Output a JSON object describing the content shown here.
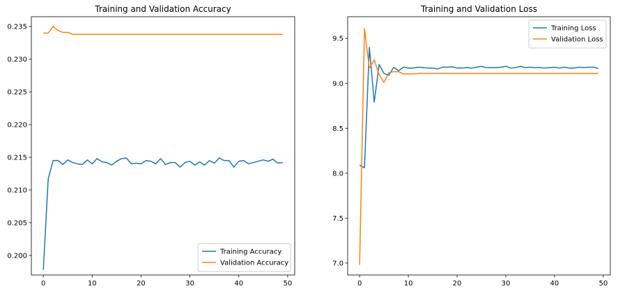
{
  "chart_data": [
    {
      "type": "line",
      "title": "Training and Validation Accuracy",
      "xlabel": "",
      "ylabel": "",
      "xlim": [
        -2.45,
        51.45
      ],
      "ylim": [
        0.197,
        0.2365
      ],
      "xticks": [
        0,
        10,
        20,
        30,
        40,
        50
      ],
      "yticks": [
        0.2,
        0.205,
        0.21,
        0.215,
        0.22,
        0.225,
        0.23,
        0.235
      ],
      "ytick_labels": [
        "0.200",
        "0.205",
        "0.210",
        "0.215",
        "0.220",
        "0.225",
        "0.230",
        "0.235"
      ],
      "legend": "lower-right",
      "grid": false,
      "x": [
        0,
        1,
        2,
        3,
        4,
        5,
        6,
        7,
        8,
        9,
        10,
        11,
        12,
        13,
        14,
        15,
        16,
        17,
        18,
        19,
        20,
        21,
        22,
        23,
        24,
        25,
        26,
        27,
        28,
        29,
        30,
        31,
        32,
        33,
        34,
        35,
        36,
        37,
        38,
        39,
        40,
        41,
        42,
        43,
        44,
        45,
        46,
        47,
        48,
        49
      ],
      "series": [
        {
          "name": "Training Accuracy",
          "color": "#1f77b4",
          "values": [
            0.1978,
            0.2117,
            0.2145,
            0.2145,
            0.2139,
            0.2146,
            0.2142,
            0.214,
            0.2139,
            0.2146,
            0.214,
            0.2148,
            0.2143,
            0.2142,
            0.2138,
            0.2144,
            0.2148,
            0.2149,
            0.214,
            0.2141,
            0.214,
            0.2145,
            0.2144,
            0.214,
            0.2148,
            0.2139,
            0.2142,
            0.2142,
            0.2135,
            0.2142,
            0.2144,
            0.2138,
            0.2143,
            0.2138,
            0.2145,
            0.2141,
            0.2149,
            0.2145,
            0.2145,
            0.2135,
            0.2144,
            0.2145,
            0.214,
            0.2142,
            0.2144,
            0.2146,
            0.2144,
            0.2147,
            0.2141,
            0.2142
          ]
        },
        {
          "name": "Validation Accuracy",
          "color": "#ff7f0e",
          "values": [
            0.234,
            0.234,
            0.235,
            0.2344,
            0.2341,
            0.2341,
            0.2338,
            0.2338,
            0.2338,
            0.2338,
            0.2338,
            0.2338,
            0.2338,
            0.2338,
            0.2338,
            0.2338,
            0.2338,
            0.2338,
            0.2338,
            0.2338,
            0.2338,
            0.2338,
            0.2338,
            0.2338,
            0.2338,
            0.2338,
            0.2338,
            0.2338,
            0.2338,
            0.2338,
            0.2338,
            0.2338,
            0.2338,
            0.2338,
            0.2338,
            0.2338,
            0.2338,
            0.2338,
            0.2338,
            0.2338,
            0.2338,
            0.2338,
            0.2338,
            0.2338,
            0.2338,
            0.2338,
            0.2338,
            0.2338,
            0.2338,
            0.2338
          ]
        }
      ]
    },
    {
      "type": "line",
      "title": "Training and Validation Loss",
      "xlabel": "",
      "ylabel": "",
      "xlim": [
        -2.45,
        51.45
      ],
      "ylim": [
        6.867,
        9.742
      ],
      "xticks": [
        0,
        10,
        20,
        30,
        40,
        50
      ],
      "yticks": [
        7.0,
        7.5,
        8.0,
        8.5,
        9.0,
        9.5
      ],
      "ytick_labels": [
        "7.0",
        "7.5",
        "8.0",
        "8.5",
        "9.0",
        "9.5"
      ],
      "legend": "upper-right",
      "grid": false,
      "x": [
        0,
        1,
        2,
        3,
        4,
        5,
        6,
        7,
        8,
        9,
        10,
        11,
        12,
        13,
        14,
        15,
        16,
        17,
        18,
        19,
        20,
        21,
        22,
        23,
        24,
        25,
        26,
        27,
        28,
        29,
        30,
        31,
        32,
        33,
        34,
        35,
        36,
        37,
        38,
        39,
        40,
        41,
        42,
        43,
        44,
        45,
        46,
        47,
        48,
        49
      ],
      "series": [
        {
          "name": "Training Loss",
          "color": "#1f77b4",
          "values": [
            8.09,
            8.06,
            9.4,
            8.79,
            9.21,
            9.11,
            9.09,
            9.18,
            9.14,
            9.18,
            9.17,
            9.17,
            9.18,
            9.175,
            9.17,
            9.17,
            9.16,
            9.18,
            9.18,
            9.185,
            9.17,
            9.17,
            9.175,
            9.17,
            9.18,
            9.19,
            9.175,
            9.175,
            9.175,
            9.18,
            9.19,
            9.17,
            9.175,
            9.19,
            9.175,
            9.18,
            9.175,
            9.175,
            9.17,
            9.175,
            9.18,
            9.17,
            9.18,
            9.17,
            9.17,
            9.18,
            9.175,
            9.18,
            9.18,
            9.165
          ]
        },
        {
          "name": "Validation Loss",
          "color": "#ff7f0e",
          "values": [
            6.98,
            9.61,
            9.17,
            9.26,
            9.1,
            9.01,
            9.12,
            9.13,
            9.13,
            9.105,
            9.105,
            9.105,
            9.11,
            9.11,
            9.11,
            9.11,
            9.11,
            9.11,
            9.11,
            9.11,
            9.11,
            9.11,
            9.11,
            9.11,
            9.11,
            9.11,
            9.11,
            9.11,
            9.11,
            9.11,
            9.11,
            9.11,
            9.11,
            9.11,
            9.11,
            9.11,
            9.11,
            9.11,
            9.11,
            9.11,
            9.11,
            9.11,
            9.11,
            9.11,
            9.11,
            9.11,
            9.11,
            9.11,
            9.11,
            9.11
          ]
        }
      ]
    }
  ]
}
